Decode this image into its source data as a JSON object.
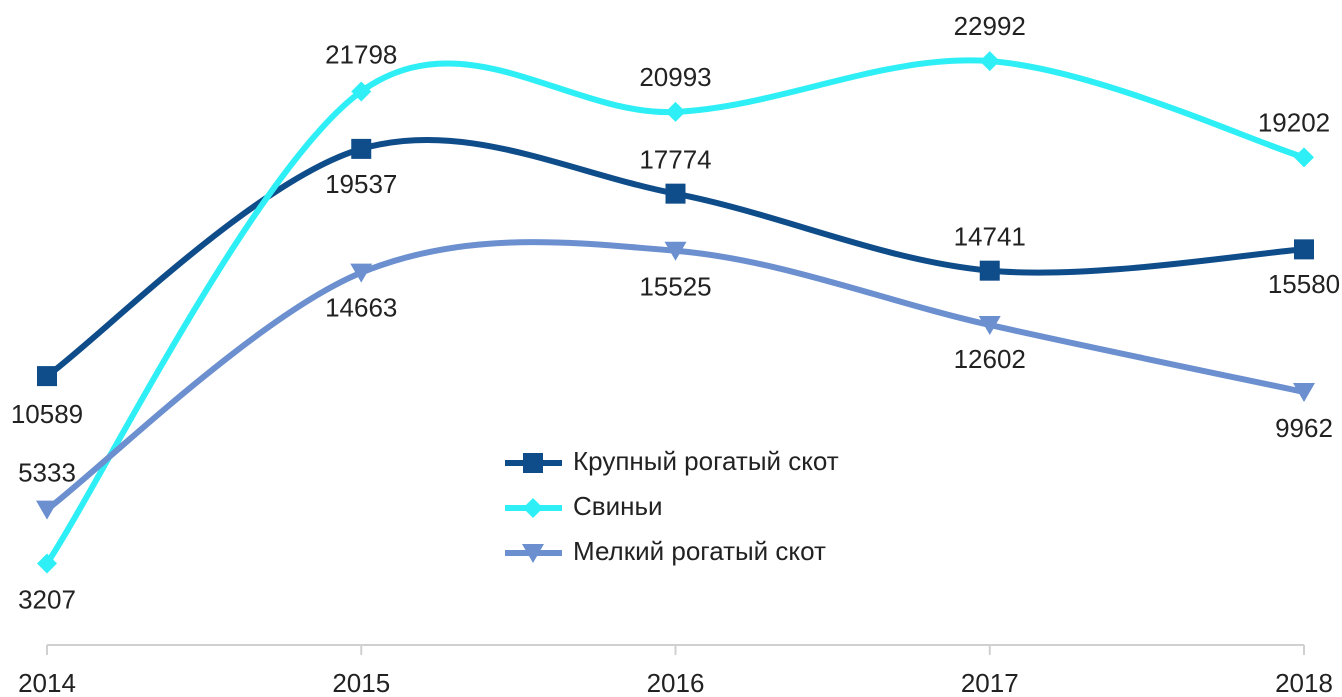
{
  "chart_data": {
    "type": "line",
    "categories": [
      "2014",
      "2015",
      "2016",
      "2017",
      "2018"
    ],
    "ylim": [
      0,
      25400
    ],
    "legend": "center",
    "series": [
      {
        "name": "Крупный рогатый скот",
        "color": "#0f4c8a",
        "marker": "square",
        "values": [
          10589,
          19537,
          17774,
          14741,
          15580
        ]
      },
      {
        "name": "Свиньи",
        "color": "#2eeff5",
        "marker": "diamond",
        "values": [
          3207,
          21798,
          20993,
          22992,
          19202
        ]
      },
      {
        "name": "Мелкий рогатый скот",
        "color": "#6b8fcf",
        "marker": "triangle-down",
        "values": [
          5333,
          14663,
          15525,
          12602,
          9962
        ]
      }
    ]
  }
}
